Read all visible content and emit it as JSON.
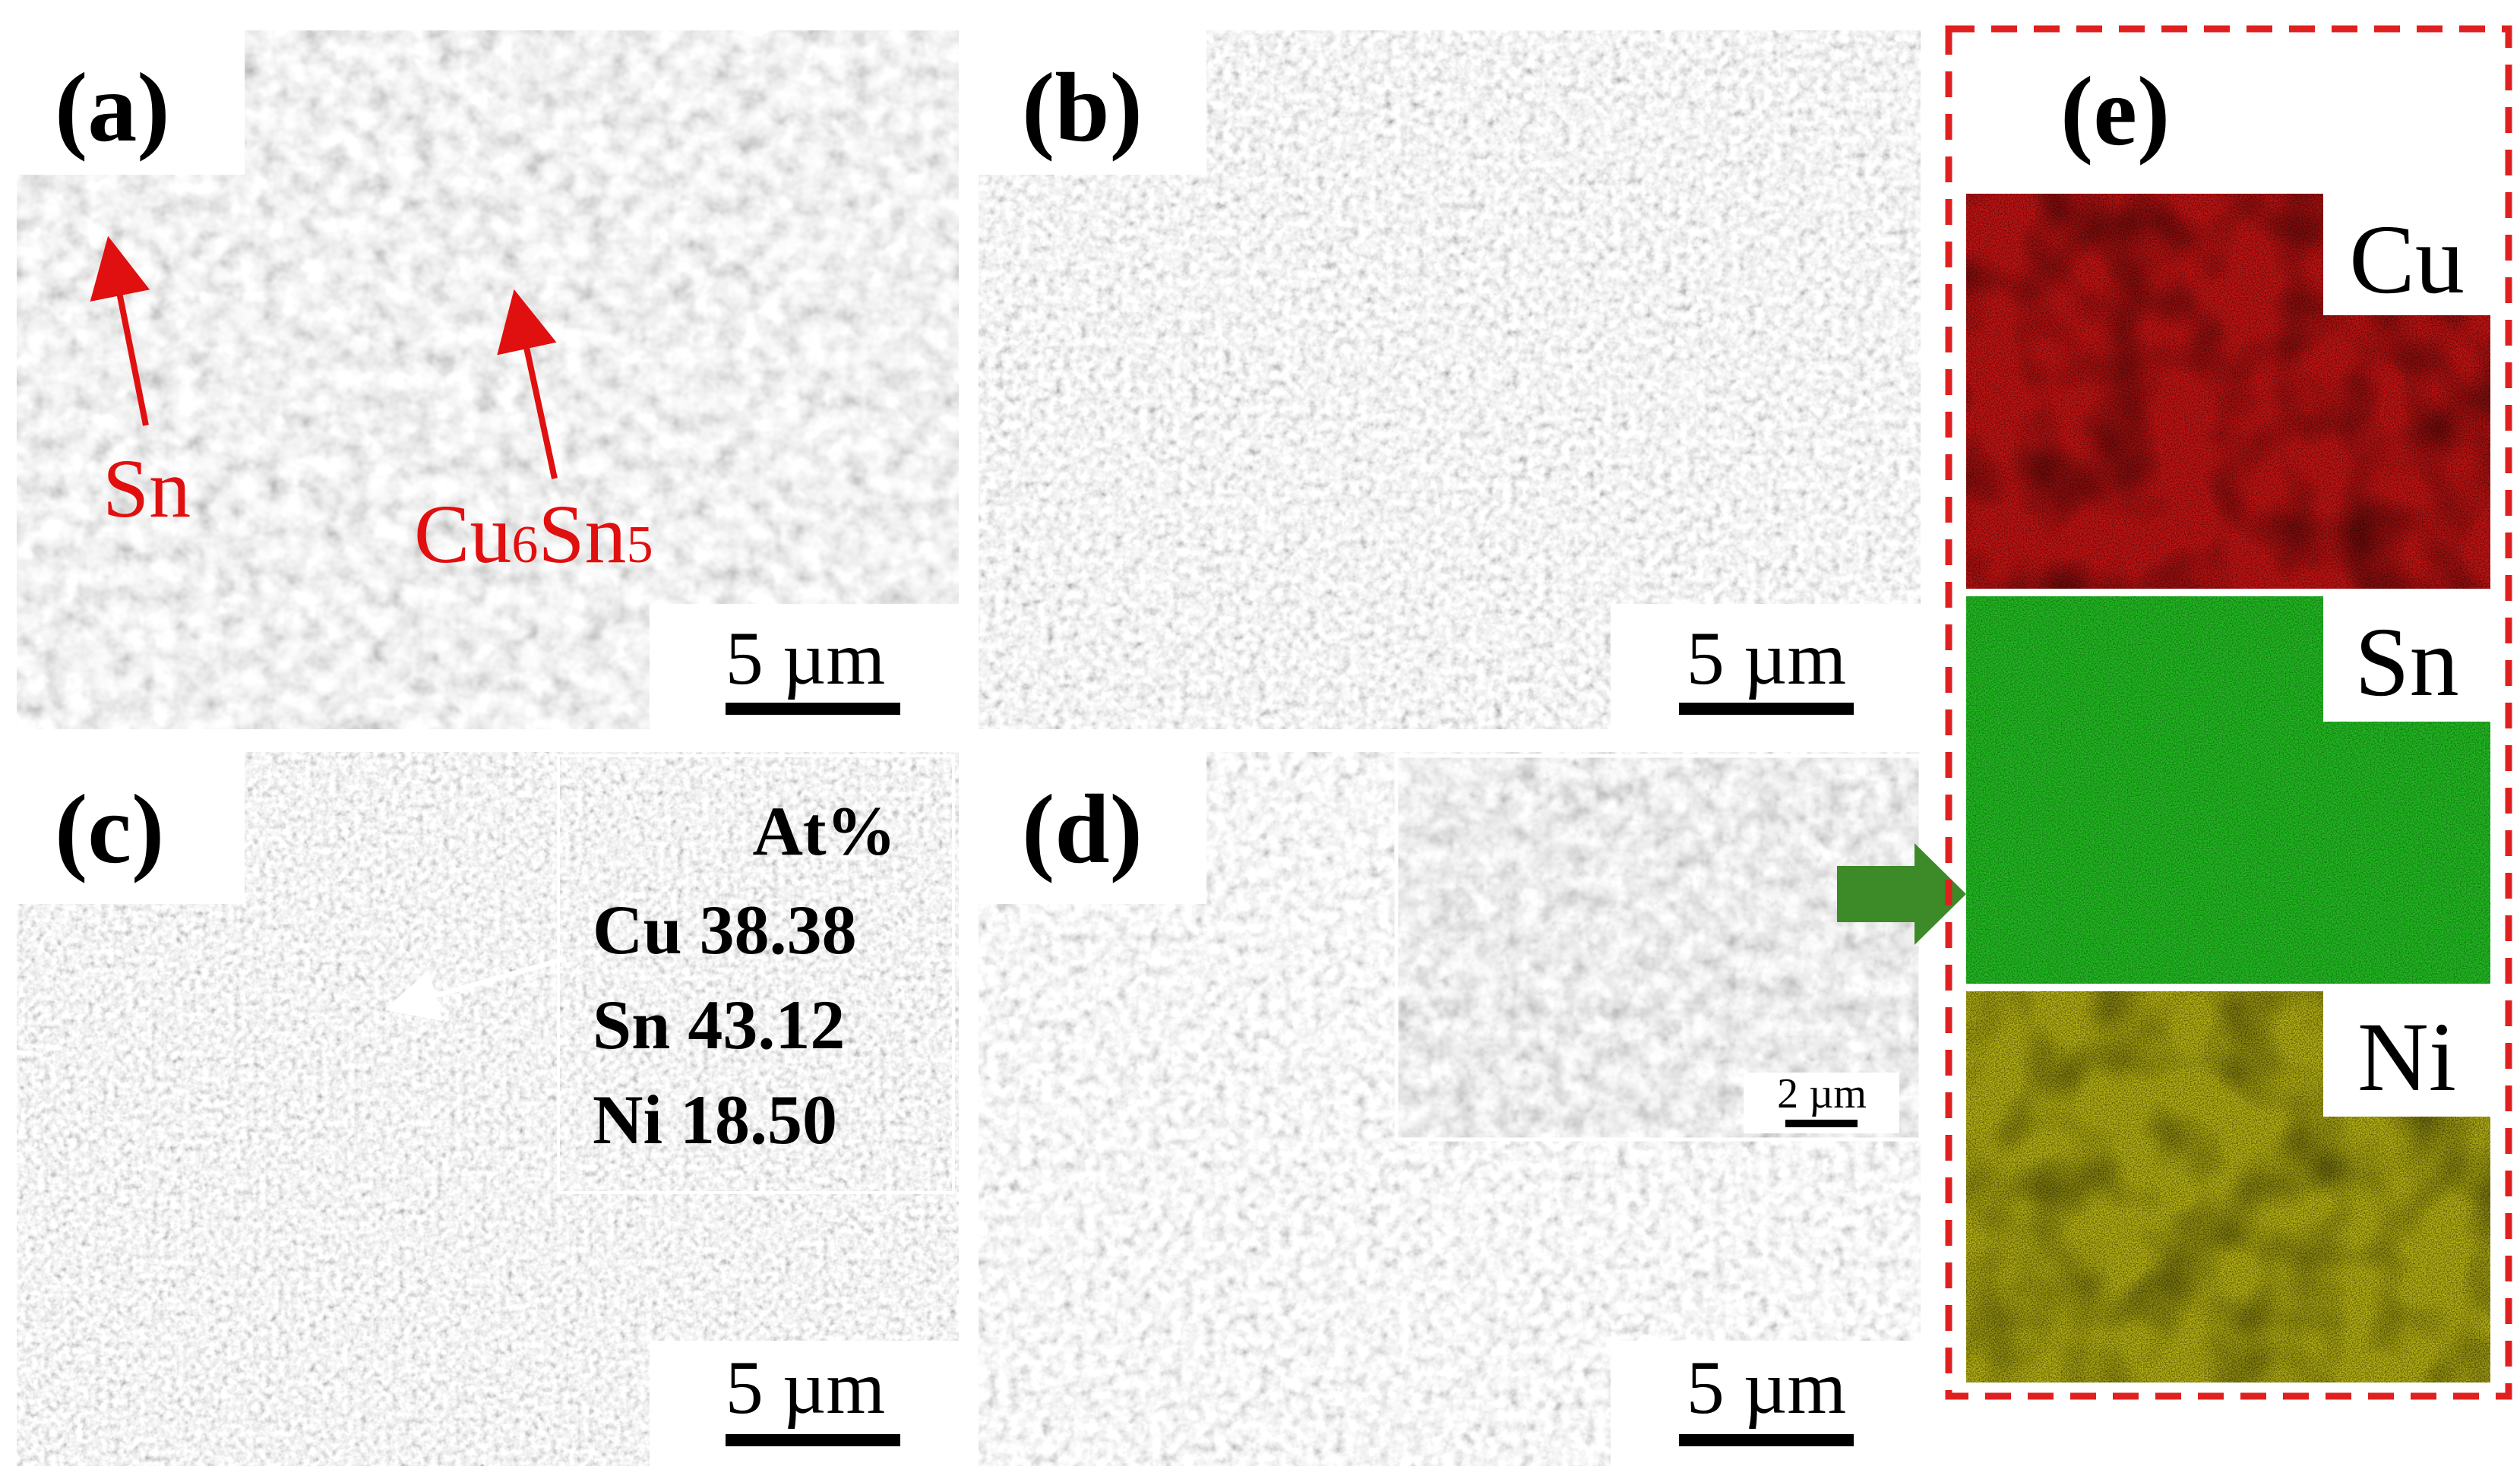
{
  "panels": [
    {
      "id": "a",
      "label": "(a)",
      "scale_bar": "5 µm"
    },
    {
      "id": "b",
      "label": "(b)",
      "scale_bar": "5 µm"
    },
    {
      "id": "c",
      "label": "(c)",
      "scale_bar": "5 µm"
    },
    {
      "id": "d",
      "label": "(d)",
      "scale_bar": "5 µm",
      "inset_scale_bar": "2 µm"
    },
    {
      "id": "e",
      "label": "(e)"
    }
  ],
  "annotations_a": {
    "sn": "Sn",
    "cu_main": "Cu",
    "cu_sub": "6",
    "sn_main": "Sn",
    "sn_sub": "5"
  },
  "composition_c": {
    "header": "At%",
    "rows": [
      {
        "element": "Cu",
        "value": "38.38"
      },
      {
        "element": "Sn",
        "value": "43.12"
      },
      {
        "element": "Ni",
        "value": "18.50"
      }
    ]
  },
  "eds_maps": [
    {
      "element": "Cu",
      "color": "#c81414"
    },
    {
      "element": "Sn",
      "color": "#22bb22"
    },
    {
      "element": "Ni",
      "color": "#b8b414"
    }
  ],
  "colors": {
    "annotation_red": "#e01010",
    "dashed_border": "#e02020",
    "arrow_green": "#3c8a28"
  }
}
